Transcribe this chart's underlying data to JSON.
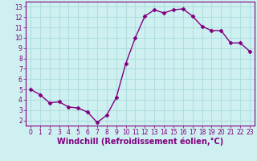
{
  "x": [
    0,
    1,
    2,
    3,
    4,
    5,
    6,
    7,
    8,
    9,
    10,
    11,
    12,
    13,
    14,
    15,
    16,
    17,
    18,
    19,
    20,
    21,
    22,
    23
  ],
  "y": [
    5.0,
    4.5,
    3.7,
    3.8,
    3.3,
    3.2,
    2.8,
    1.8,
    2.5,
    4.2,
    7.5,
    10.0,
    12.1,
    12.7,
    12.4,
    12.7,
    12.8,
    12.1,
    11.1,
    10.7,
    10.7,
    9.5,
    9.5,
    8.7
  ],
  "line_color": "#800080",
  "marker": "D",
  "marker_size": 2.5,
  "bg_color": "#cff0f0",
  "xlabel": "Windchill (Refroidissement éolien,°C)",
  "xlim": [
    -0.5,
    23.5
  ],
  "ylim": [
    1.5,
    13.5
  ],
  "yticks": [
    2,
    3,
    4,
    5,
    6,
    7,
    8,
    9,
    10,
    11,
    12,
    13
  ],
  "xticks": [
    0,
    1,
    2,
    3,
    4,
    5,
    6,
    7,
    8,
    9,
    10,
    11,
    12,
    13,
    14,
    15,
    16,
    17,
    18,
    19,
    20,
    21,
    22,
    23
  ],
  "grid_color": "#b0dede",
  "tick_fontsize": 5.5,
  "xlabel_fontsize": 7,
  "line_width": 1.0
}
